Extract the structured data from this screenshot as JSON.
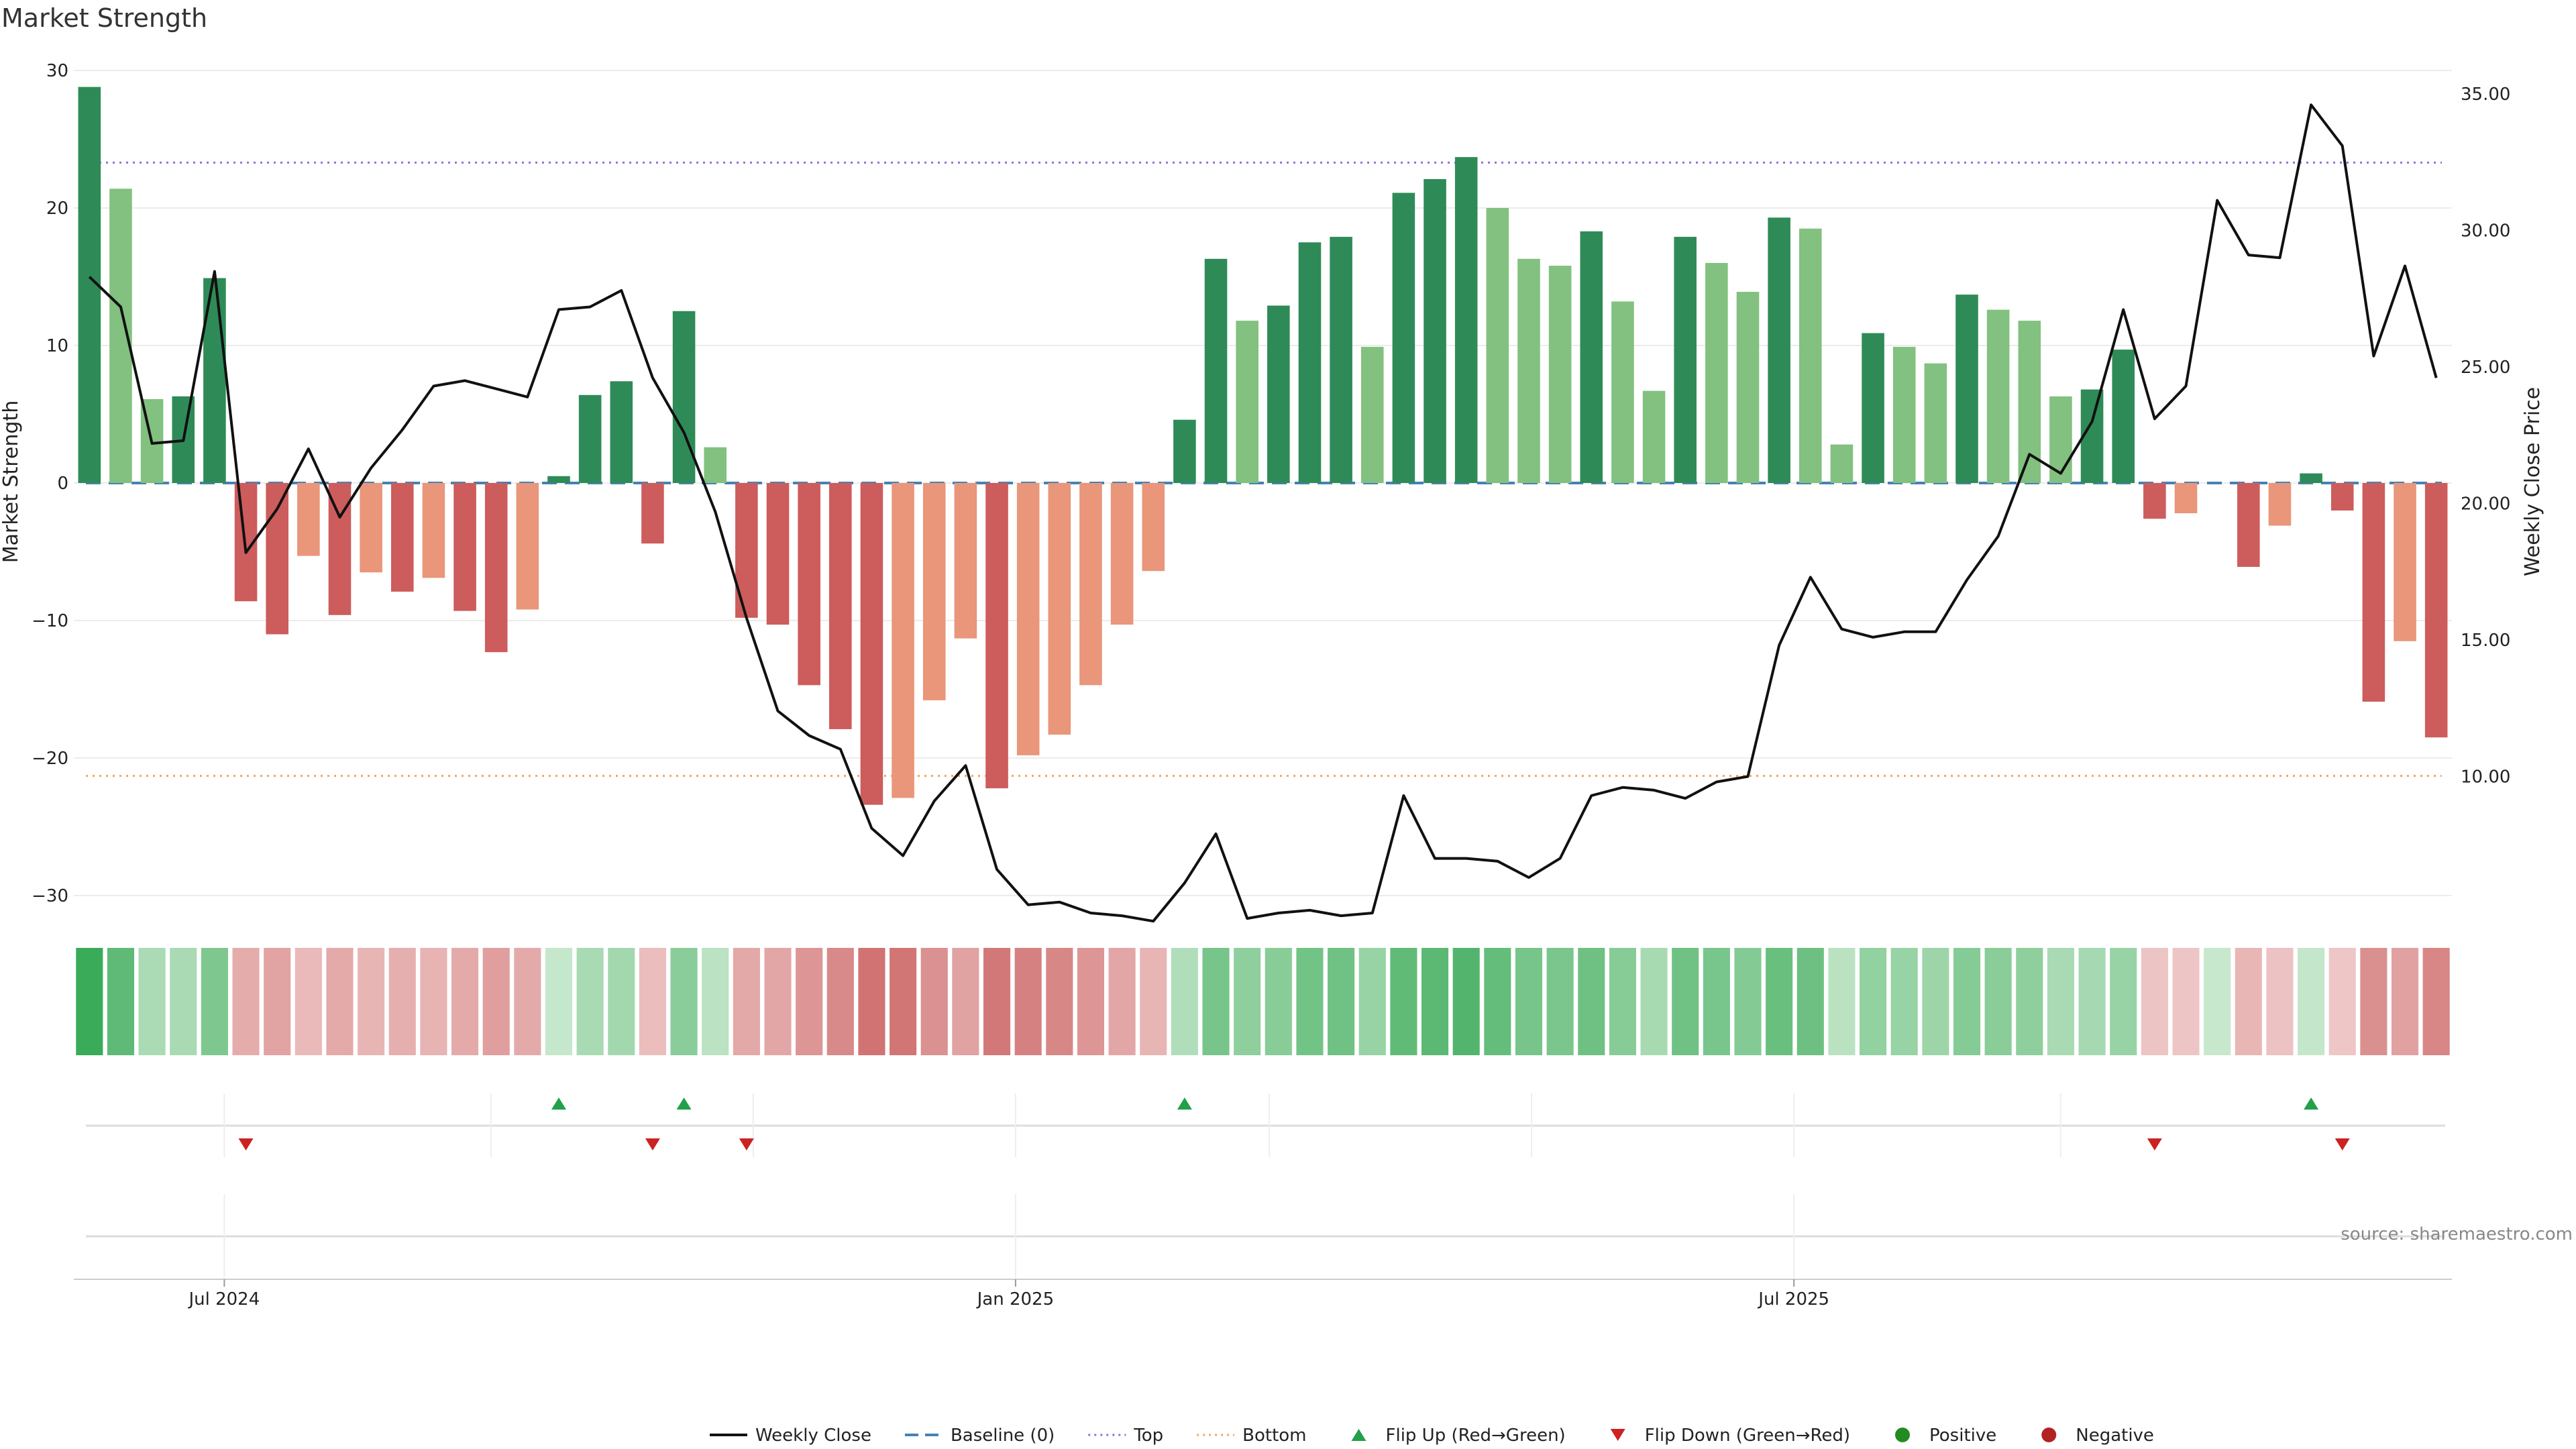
{
  "chart_data": {
    "type": "bar",
    "title": "Market Strength",
    "ylabel_left": "Market Strength",
    "ylabel_right": "Weekly Close Price",
    "ylim_left": [
      -30,
      30
    ],
    "ylim_right": [
      5,
      35
    ],
    "yticks_left": [
      30,
      20,
      10,
      0,
      -10,
      -20,
      -30
    ],
    "yticks_left_labels": [
      "30",
      "20",
      "10",
      "0",
      "−10",
      "−20",
      "−30"
    ],
    "yticks_right": [
      35,
      30,
      25,
      20,
      15,
      10
    ],
    "yticks_right_labels": [
      "35.00",
      "30.00",
      "25.00",
      "20.00",
      "15.00",
      "10.00"
    ],
    "x_start": "2024-05-27",
    "x_end": "2025-12-01",
    "xticks": [
      {
        "date": "2024-07-01",
        "label": "Jul 2024"
      },
      {
        "date": "2025-01-01",
        "label": "Jan 2025"
      },
      {
        "date": "2025-07-01",
        "label": "Jul 2025"
      }
    ],
    "minor_grid_dates": [
      "2024-09-01",
      "2024-11-01",
      "2025-03-01",
      "2025-05-01",
      "2025-09-01"
    ],
    "top_line": 23.3,
    "bottom_line": -21.3,
    "baseline": 0,
    "week_start": "2024-05-27",
    "strength": [
      28.8,
      21.4,
      6.1,
      6.3,
      14.9,
      -8.6,
      -11.0,
      -5.3,
      -9.6,
      -6.5,
      -7.9,
      -6.9,
      -9.3,
      -12.3,
      -9.2,
      0.5,
      6.4,
      7.4,
      -4.4,
      12.5,
      2.6,
      -9.8,
      -10.3,
      -14.7,
      -17.9,
      -23.4,
      -22.9,
      -15.8,
      -11.3,
      -22.2,
      -19.8,
      -18.3,
      -14.7,
      -10.3,
      -6.4,
      4.6,
      16.3,
      11.8,
      12.9,
      17.5,
      17.9,
      9.9,
      21.1,
      22.1,
      23.7,
      20.0,
      16.3,
      15.8,
      18.3,
      13.2,
      6.7,
      17.9,
      16.0,
      13.9,
      19.3,
      18.5,
      2.8,
      10.9,
      9.9,
      8.7,
      13.7,
      12.6,
      11.8,
      6.3,
      6.8,
      9.7,
      -2.6,
      -2.2,
      0.0,
      -6.1,
      -3.1,
      0.7,
      -2.0,
      -15.9,
      -11.5,
      -18.5
    ],
    "bar_tone": [
      "strong",
      "weak",
      "weak",
      "strong",
      "strong",
      "strong",
      "strong",
      "weak",
      "strong",
      "weak",
      "strong",
      "weak",
      "strong",
      "strong",
      "weak",
      "strong",
      "strong",
      "strong",
      "strong",
      "strong",
      "weak",
      "strong",
      "strong",
      "strong",
      "strong",
      "strong",
      "weak",
      "weak",
      "weak",
      "strong",
      "weak",
      "weak",
      "weak",
      "weak",
      "weak",
      "strong",
      "strong",
      "weak",
      "strong",
      "strong",
      "strong",
      "weak",
      "strong",
      "strong",
      "strong",
      "weak",
      "weak",
      "weak",
      "strong",
      "weak",
      "weak",
      "strong",
      "weak",
      "weak",
      "strong",
      "weak",
      "weak",
      "strong",
      "weak",
      "weak",
      "strong",
      "weak",
      "weak",
      "weak",
      "strong",
      "strong",
      "strong",
      "weak",
      "strong",
      "strong",
      "weak",
      "strong",
      "strong",
      "strong",
      "weak",
      "strong"
    ],
    "weekly_close": [
      28.3,
      27.2,
      22.2,
      22.3,
      28.5,
      18.2,
      19.8,
      22.0,
      19.5,
      21.3,
      22.7,
      24.3,
      24.5,
      24.2,
      23.9,
      27.1,
      27.2,
      27.8,
      24.6,
      22.6,
      19.7,
      15.8,
      12.4,
      11.5,
      11.0,
      8.1,
      7.1,
      9.1,
      10.4,
      6.6,
      5.3,
      5.4,
      5.0,
      4.9,
      4.7,
      6.1,
      7.9,
      4.8,
      5.0,
      5.1,
      4.9,
      5.0,
      9.3,
      7.0,
      7.0,
      6.9,
      6.3,
      7.0,
      9.3,
      9.6,
      9.5,
      9.2,
      9.8,
      10.0,
      14.8,
      17.3,
      15.4,
      15.1,
      15.3,
      15.3,
      17.2,
      18.8,
      21.8,
      21.1,
      23.0,
      27.1,
      23.1,
      24.3,
      31.1,
      29.1,
      29.0,
      34.6,
      33.1,
      25.4,
      28.7,
      24.6
    ],
    "flips_up": [
      15,
      19,
      35,
      71
    ],
    "flips_down": [
      5,
      18,
      21,
      66,
      72
    ],
    "strength_strip": [
      28.8,
      21.4,
      6.1,
      6.3,
      14.9,
      -8.6,
      -11.0,
      -5.3,
      -9.6,
      -6.5,
      -7.9,
      -6.9,
      -9.3,
      -12.3,
      -9.2,
      0.5,
      6.4,
      7.4,
      -4.4,
      12.5,
      2.6,
      -9.8,
      -10.3,
      -14.7,
      -17.9,
      -23.4,
      -22.9,
      -15.8,
      -11.3,
      -22.2,
      -19.8,
      -18.3,
      -14.7,
      -10.3,
      -6.4,
      4.6,
      16.3,
      11.8,
      12.9,
      17.5,
      17.9,
      9.9,
      21.1,
      22.1,
      23.7,
      20.0,
      16.3,
      15.8,
      18.3,
      13.2,
      6.7,
      17.9,
      16.0,
      13.9,
      19.3,
      18.5,
      2.8,
      10.9,
      9.9,
      8.7,
      13.7,
      12.6,
      11.8,
      6.3,
      6.8,
      9.7,
      -2.6,
      -2.2,
      0.0,
      -6.1,
      -3.1,
      0.7,
      -2.0,
      -15.9,
      -11.5,
      -18.5
    ],
    "colors": {
      "pos_strong": "#2e8b57",
      "pos_weak": "#82c17f",
      "neg_strong": "#cd5c5c",
      "neg_weak": "#e9967a",
      "price_line": "#111111",
      "baseline": "#4682b4",
      "top": "#9370db",
      "bottom": "#f4a460",
      "flip_up": "#22a04a",
      "flip_down": "#cc2222",
      "positive_dot": "#228b22",
      "negative_dot": "#b22222",
      "grid": "#ececec"
    },
    "legend": [
      {
        "label": "Weekly Close",
        "kind": "line-solid",
        "color": "#111111"
      },
      {
        "label": "Baseline (0)",
        "kind": "line-dashed",
        "color": "#4682b4"
      },
      {
        "label": "Top",
        "kind": "line-dotted",
        "color": "#9370db"
      },
      {
        "label": "Bottom",
        "kind": "line-dotted",
        "color": "#f4a460"
      },
      {
        "label": "Flip Up (Red→Green)",
        "kind": "triangle-up",
        "color": "#22a04a"
      },
      {
        "label": "Flip Down (Green→Red)",
        "kind": "triangle-down",
        "color": "#cc2222"
      },
      {
        "label": "Positive",
        "kind": "dot",
        "color": "#228b22"
      },
      {
        "label": "Negative",
        "kind": "dot",
        "color": "#b22222"
      }
    ],
    "legend_placement": "bottom-center",
    "grid": true,
    "source": "source: sharemaestro.com"
  }
}
